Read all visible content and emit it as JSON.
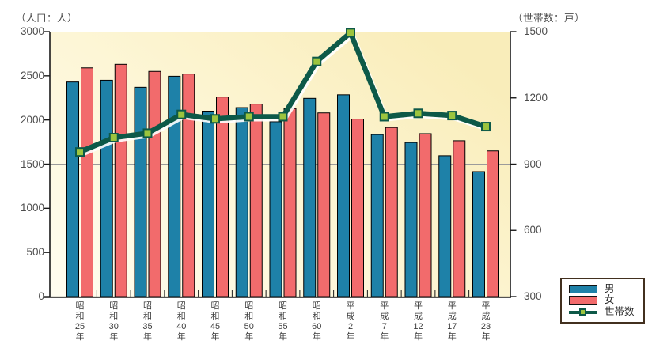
{
  "chart_data": {
    "type": "bar+line combo",
    "categories": [
      "昭和25年",
      "昭和30年",
      "昭和35年",
      "昭和40年",
      "昭和45年",
      "昭和50年",
      "昭和55年",
      "昭和60年",
      "平成2年",
      "平成7年",
      "平成12年",
      "平成17年",
      "平成23年"
    ],
    "series": [
      {
        "name": "男",
        "type": "bar",
        "axis": "left",
        "color": "#1e81a8",
        "outline": "#000000",
        "values": [
          2430,
          2450,
          2370,
          2495,
          2100,
          2140,
          1980,
          2245,
          2285,
          1835,
          1745,
          1595,
          1415
        ]
      },
      {
        "name": "女",
        "type": "bar",
        "axis": "left",
        "color": "#f26b6c",
        "outline": "#000000",
        "values": [
          2590,
          2630,
          2550,
          2520,
          2260,
          2180,
          2130,
          2080,
          2010,
          1915,
          1845,
          1765,
          1650
        ]
      },
      {
        "name": "世帯数",
        "type": "line",
        "axis": "right",
        "color": "#0d5948",
        "marker": "square",
        "marker_color": "#9cc43e",
        "values": [
          955,
          1020,
          1040,
          1125,
          1105,
          1115,
          1115,
          1365,
          1495,
          1115,
          1130,
          1120,
          1070
        ]
      }
    ],
    "left_axis": {
      "title": "（人口：人）",
      "range": [
        0,
        3000
      ],
      "ticks": [
        0,
        500,
        1000,
        1500,
        2000,
        2500,
        3000
      ]
    },
    "right_axis": {
      "title": "（世帯数：戸）",
      "range": [
        300,
        1500
      ],
      "ticks": [
        300,
        600,
        900,
        1200,
        1500
      ]
    },
    "gridlines_left_values": [
      1500
    ],
    "legend": {
      "position": "bottom-right",
      "entries": [
        "男",
        "女",
        "世帯数"
      ]
    },
    "plot_background_gradient": [
      "#fffdf0",
      "#fdf6d6",
      "#f9edba"
    ],
    "gridline_color": "#9b9b9b",
    "axis_line_color": "#1a1a1a",
    "tick_text_color": "#4d4d4d"
  }
}
